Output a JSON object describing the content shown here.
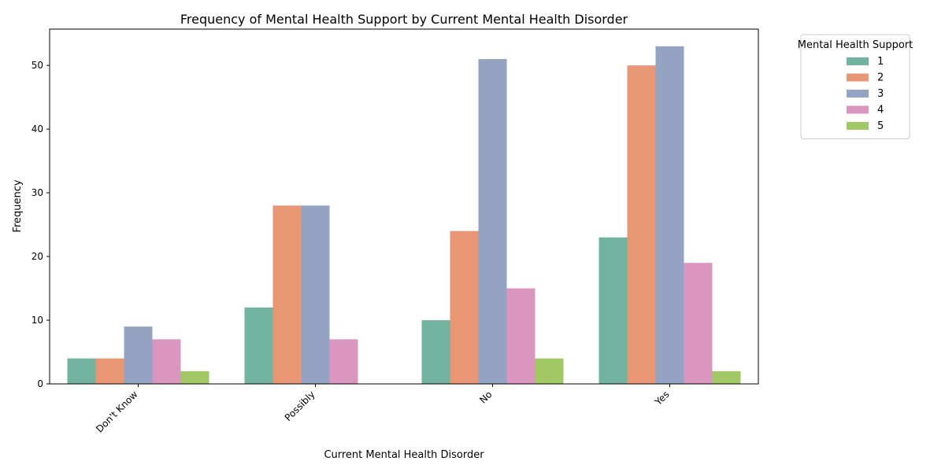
{
  "chart_data": {
    "type": "bar",
    "title": "Frequency of Mental Health Support by Current Mental Health Disorder",
    "xlabel": "Current Mental Health Disorder",
    "ylabel": "Frequency",
    "categories": [
      "Don't Know",
      "Possibly",
      "No",
      "Yes"
    ],
    "ylim": [
      0,
      55.7
    ],
    "yticks": [
      0,
      10,
      20,
      30,
      40,
      50
    ],
    "grid": false,
    "legend": {
      "title": "Mental Health Support",
      "placement": "outside-top-right"
    },
    "series": [
      {
        "name": "1",
        "color": "#72b3a0",
        "values": [
          4,
          12,
          10,
          23
        ]
      },
      {
        "name": "2",
        "color": "#e99675",
        "values": [
          4,
          28,
          24,
          50
        ]
      },
      {
        "name": "3",
        "color": "#95a3c3",
        "values": [
          9,
          28,
          51,
          53
        ]
      },
      {
        "name": "4",
        "color": "#db96c0",
        "values": [
          7,
          7,
          15,
          19
        ]
      },
      {
        "name": "5",
        "color": "#a2c865",
        "values": [
          2,
          0,
          4,
          2
        ]
      }
    ]
  }
}
